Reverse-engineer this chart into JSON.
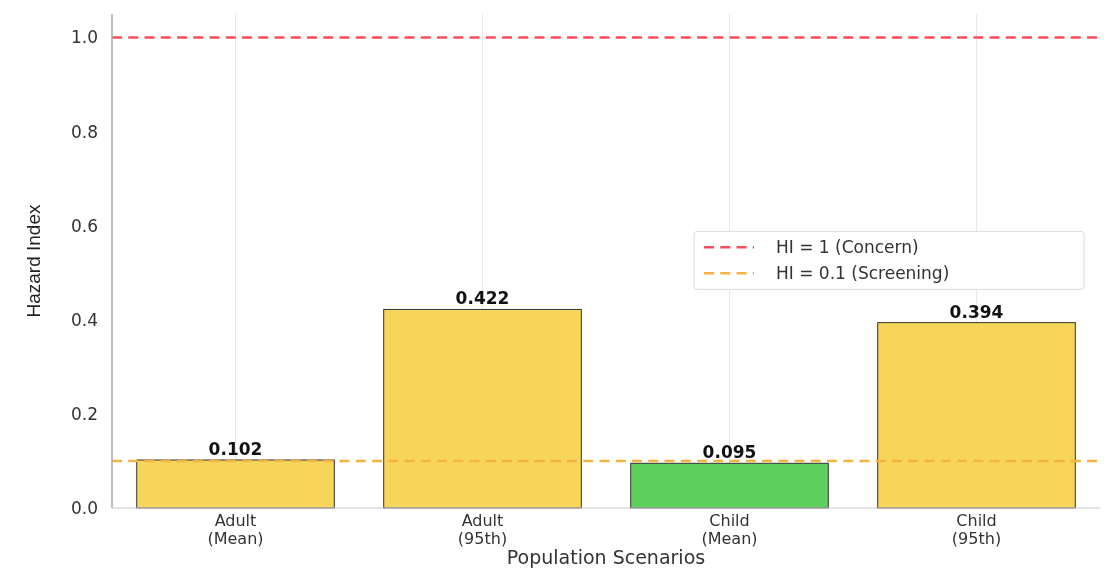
{
  "chart_data": {
    "type": "bar",
    "xlabel": "Population Scenarios",
    "ylabel": "Hazard Index",
    "categories": [
      "Adult\n(Mean)",
      "Adult\n(95th)",
      "Child\n(Mean)",
      "Child\n(95th)"
    ],
    "values": [
      0.102,
      0.422,
      0.095,
      0.394
    ],
    "colors": [
      "#f7d55a",
      "#f7d55a",
      "#5ccf5c",
      "#f7d55a"
    ],
    "data_labels": true,
    "ylim": [
      0,
      1.05
    ],
    "yticks": [
      {
        "value": 0,
        "label": "0.0"
      },
      {
        "value": 0.2,
        "label": "0.2"
      },
      {
        "value": 0.4,
        "label": "0.4"
      },
      {
        "value": 0.6,
        "label": "0.6"
      },
      {
        "value": 0.8,
        "label": "0.8"
      },
      {
        "value": 1,
        "label": "1.0"
      }
    ],
    "grid": "x",
    "legend": "right",
    "ref_lines": [
      {
        "axis": "y",
        "value": 1,
        "label": "HI = 1 (Concern)",
        "color": "#ff4d5a",
        "line_style": "dashed"
      },
      {
        "axis": "y",
        "value": 0.1,
        "label": "HI = 0.1 (Screening)",
        "color": "#f5b342",
        "line_style": "dashed"
      }
    ]
  }
}
